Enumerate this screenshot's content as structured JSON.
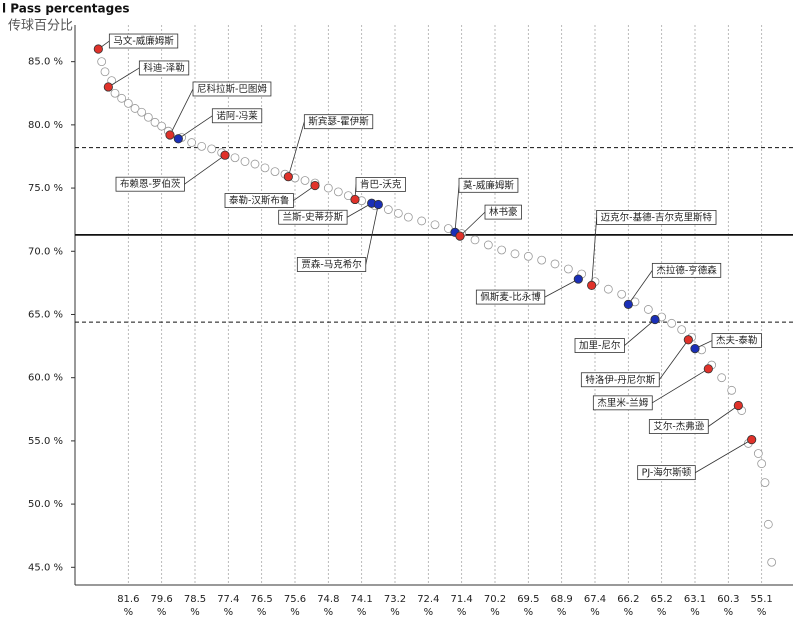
{
  "chart_data": {
    "type": "scatter",
    "title": "l Pass percentages",
    "subtitle": "传球百分比",
    "xlim": [
      0,
      210
    ],
    "ylim": [
      43.6,
      87.9
    ],
    "yticks": [
      {
        "value": 45,
        "label": "45.0 %"
      },
      {
        "value": 50,
        "label": "50.0 %"
      },
      {
        "value": 55,
        "label": "55.0 %"
      },
      {
        "value": 60,
        "label": "60.0 %"
      },
      {
        "value": 65,
        "label": "65.0 %"
      },
      {
        "value": 70,
        "label": "70.0 %"
      },
      {
        "value": 75,
        "label": "75.0 %"
      },
      {
        "value": 80,
        "label": "80.0 %"
      },
      {
        "value": 85,
        "label": "85.0 %"
      }
    ],
    "xticks": [
      {
        "value": 16,
        "label": "81.6 %"
      },
      {
        "value": 26,
        "label": "79.6 %"
      },
      {
        "value": 36,
        "label": "78.5 %"
      },
      {
        "value": 46,
        "label": "77.4 %"
      },
      {
        "value": 56,
        "label": "76.5 %"
      },
      {
        "value": 66,
        "label": "75.6 %"
      },
      {
        "value": 76,
        "label": "74.8 %"
      },
      {
        "value": 86,
        "label": "74.1 %"
      },
      {
        "value": 96,
        "label": "73.2 %"
      },
      {
        "value": 106,
        "label": "72.4 %"
      },
      {
        "value": 116,
        "label": "71.4 %"
      },
      {
        "value": 126,
        "label": "70.2 %"
      },
      {
        "value": 136,
        "label": "69.5 %"
      },
      {
        "value": 146,
        "label": "68.9 %"
      },
      {
        "value": 156,
        "label": "67.4 %"
      },
      {
        "value": 166,
        "label": "66.2 %"
      },
      {
        "value": 176,
        "label": "65.2 %"
      },
      {
        "value": 186,
        "label": "63.1 %"
      },
      {
        "value": 196,
        "label": "60.3 %"
      },
      {
        "value": 206,
        "label": "55.1 %"
      }
    ],
    "xgrid": true,
    "reference_lines": [
      {
        "value": 78.2,
        "style": "dashed"
      },
      {
        "value": 71.3,
        "style": "solid"
      },
      {
        "value": 64.4,
        "style": "dashed"
      }
    ],
    "points": {
      "color": "#ffffff",
      "x": [
        8,
        9,
        11,
        12,
        14,
        16,
        18,
        20,
        22,
        24,
        26,
        28,
        32,
        35,
        38,
        41,
        44,
        48,
        51,
        54,
        57,
        60,
        63,
        66,
        69,
        72,
        76,
        79,
        82,
        86,
        90,
        94,
        97,
        100,
        104,
        108,
        112,
        116,
        120,
        124,
        128,
        132,
        136,
        140,
        144,
        148,
        152,
        156,
        160,
        164,
        168,
        172,
        176,
        179,
        182,
        185,
        188,
        191,
        194,
        197,
        200,
        202,
        205,
        206,
        207,
        208,
        209
      ],
      "y": [
        85.0,
        84.2,
        83.5,
        82.5,
        82.1,
        81.7,
        81.3,
        81.0,
        80.6,
        80.2,
        79.9,
        79.5,
        79.0,
        78.6,
        78.3,
        78.1,
        77.8,
        77.4,
        77.1,
        76.9,
        76.6,
        76.3,
        76.1,
        75.8,
        75.6,
        75.4,
        75.0,
        74.7,
        74.4,
        74.0,
        73.6,
        73.3,
        73.0,
        72.7,
        72.4,
        72.1,
        71.8,
        71.4,
        70.9,
        70.5,
        70.1,
        69.8,
        69.6,
        69.3,
        69.0,
        68.6,
        68.2,
        67.6,
        67.0,
        66.6,
        66.0,
        65.4,
        64.8,
        64.3,
        63.8,
        63.2,
        62.2,
        61.0,
        60.0,
        59.0,
        57.4,
        54.8,
        54.0,
        53.2,
        51.7,
        48.4,
        45.4
      ]
    },
    "players": [
      {
        "label": "马文-威廉姆斯",
        "x": 7,
        "y": 86.0,
        "color": "#e0322a"
      },
      {
        "label": "科迪-泽勒",
        "x": 10,
        "y": 83.0,
        "color": "#e0322a"
      },
      {
        "label": "尼科拉斯-巴图姆",
        "x": 28.5,
        "y": 79.2,
        "color": "#e0322a"
      },
      {
        "label": "诺阿-冯莱",
        "x": 31,
        "y": 78.9,
        "color": "#1a2fb8"
      },
      {
        "label": "布赖恩-罗伯茨",
        "x": 45,
        "y": 77.6,
        "color": "#e0322a"
      },
      {
        "label": "斯宾瑟-霍伊斯",
        "x": 64,
        "y": 75.9,
        "color": "#e0322a"
      },
      {
        "label": "泰勒-汉斯布鲁",
        "x": 72,
        "y": 75.2,
        "color": "#e0322a"
      },
      {
        "label": "肯巴-沃克",
        "x": 84,
        "y": 74.1,
        "color": "#e0322a"
      },
      {
        "label": "兰斯-史蒂芬斯",
        "x": 89,
        "y": 73.8,
        "color": "#1a2fb8"
      },
      {
        "label": "贾森-马克希尔",
        "x": 91,
        "y": 73.7,
        "color": "#1a2fb8"
      },
      {
        "label": "莫-威廉姆斯",
        "x": 114,
        "y": 71.5,
        "color": "#1a2fb8"
      },
      {
        "label": "林书豪",
        "x": 115.5,
        "y": 71.2,
        "color": "#e0322a"
      },
      {
        "label": "佩斯麦-比永博",
        "x": 151,
        "y": 67.8,
        "color": "#1a2fb8"
      },
      {
        "label": "迈克尔-基德-吉尔克里斯特",
        "x": 155,
        "y": 67.3,
        "color": "#e0322a"
      },
      {
        "label": "杰拉德-亨德森",
        "x": 166,
        "y": 65.8,
        "color": "#1a2fb8"
      },
      {
        "label": "加里-尼尔",
        "x": 174,
        "y": 64.6,
        "color": "#1a2fb8"
      },
      {
        "label": "特洛伊-丹尼尔斯",
        "x": 184,
        "y": 63.0,
        "color": "#e0322a"
      },
      {
        "label": "杰夫-泰勒",
        "x": 186,
        "y": 62.3,
        "color": "#1a2fb8"
      },
      {
        "label": "杰里米-兰姆",
        "x": 190,
        "y": 60.7,
        "color": "#e0322a"
      },
      {
        "label": "艾尔-杰弗逊",
        "x": 199,
        "y": 57.8,
        "color": "#e0322a"
      },
      {
        "label": "PJ-海尔斯顿",
        "x": 203,
        "y": 55.1,
        "color": "#e0322a"
      }
    ]
  }
}
